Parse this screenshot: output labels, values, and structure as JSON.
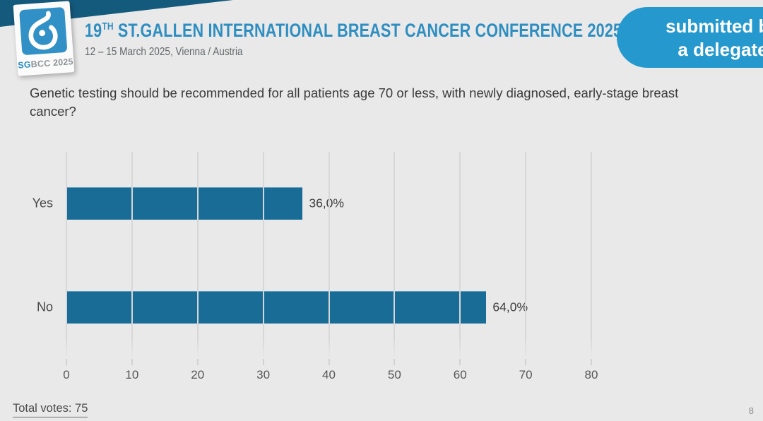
{
  "header": {
    "logo": {
      "sg": "SG",
      "rest": "BCC 2025"
    },
    "title_prefix": "19",
    "title_sup": "TH",
    "title_rest": " ST.GALLEN INTERNATIONAL BREAST CANCER CONFERENCE 2025",
    "subtitle": "12 – 15 March 2025, Vienna / Austria",
    "badge_line1": "submitted by",
    "badge_line2": "a delegate"
  },
  "question": "Genetic testing should be recommended for all patients age 70 or less, with newly diagnosed, early-stage breast cancer?",
  "chart_data": {
    "type": "bar",
    "orientation": "horizontal",
    "title": "",
    "categories": [
      "Yes",
      "No"
    ],
    "values": [
      36.0,
      64.0
    ],
    "values_display": [
      "36,0%",
      "64,0%"
    ],
    "x_ticks": [
      0,
      10,
      20,
      30,
      40,
      50,
      60,
      70,
      80
    ],
    "xlim": [
      0,
      80
    ],
    "grid": true,
    "legend": "none",
    "bar_color": "#186c96"
  },
  "footer": {
    "total_votes": "Total votes: 75",
    "page_number": "8"
  },
  "colors": {
    "background": "#e9e9e9",
    "header_band": "#145a7d",
    "title_blue": "#2e8ec1",
    "badge_blue": "#2598ce",
    "logo_blue": "#3191c6",
    "bar_blue": "#186c96"
  }
}
